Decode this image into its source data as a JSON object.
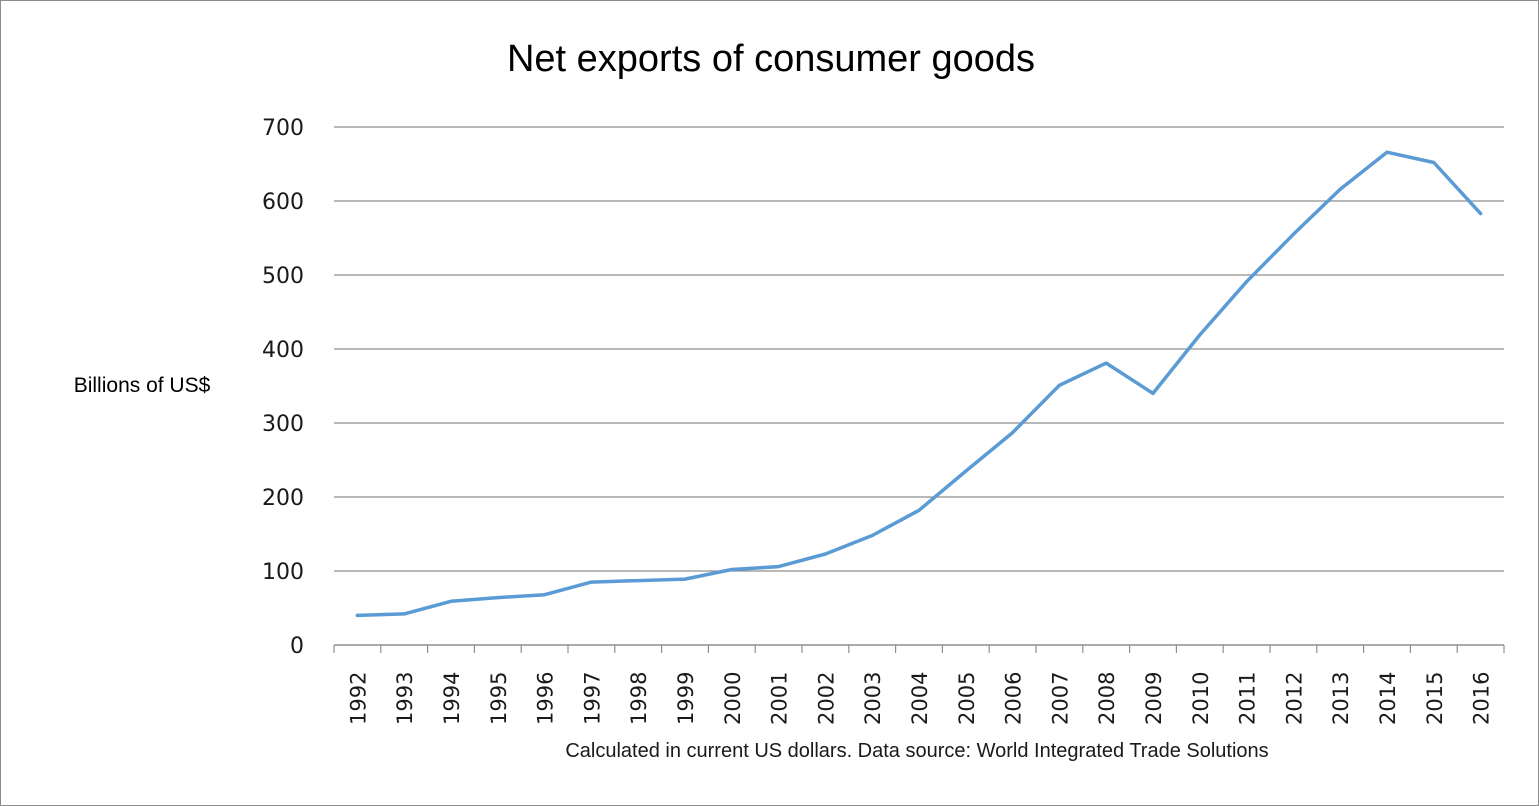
{
  "chart_data": {
    "type": "line",
    "title": "Net exports of consumer goods",
    "ylabel": "Billions of US$",
    "xlabel": "",
    "note": "Calculated in current US dollars. Data source: World Integrated Trade Solutions",
    "ylim": [
      0,
      700
    ],
    "yticks": [
      0,
      100,
      200,
      300,
      400,
      500,
      600,
      700
    ],
    "grid": true,
    "legend": "none",
    "x": [
      "1992",
      "1993",
      "1994",
      "1995",
      "1996",
      "1997",
      "1998",
      "1999",
      "2000",
      "2001",
      "2002",
      "2003",
      "2004",
      "2005",
      "2006",
      "2007",
      "2008",
      "2009",
      "2010",
      "2011",
      "2012",
      "2013",
      "2014",
      "2015",
      "2016"
    ],
    "series": [
      {
        "values": [
          40,
          42,
          59,
          64,
          68,
          85,
          87,
          89,
          102,
          106,
          123,
          148,
          182,
          235,
          287,
          351,
          381,
          340,
          419,
          491,
          555,
          616,
          666,
          652,
          583
        ],
        "color": "#5b9bd5"
      }
    ]
  }
}
